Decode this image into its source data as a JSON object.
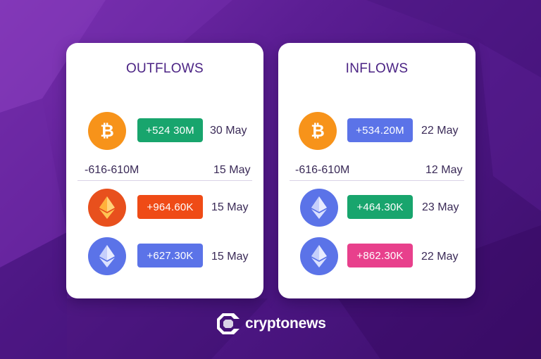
{
  "outflows": {
    "title": "OUTFLOWS",
    "rows": [
      {
        "icon": "bitcoin-icon",
        "amount": "+524 30M",
        "date": "30 May"
      },
      {
        "amount": "-616-610M",
        "date": "15 May"
      },
      {
        "icon": "ethereum-icon",
        "amount": "+964.60K",
        "date": "15 May"
      },
      {
        "icon": "ethereum-icon",
        "amount": "+627.30K",
        "date": "15 May"
      }
    ]
  },
  "inflows": {
    "title": "INFLOWS",
    "rows": [
      {
        "icon": "bitcoin-icon",
        "amount": "+534.20M",
        "date": "22 May"
      },
      {
        "amount": "-616-610M",
        "date": "12 May"
      },
      {
        "icon": "ethereum-icon",
        "amount": "+464.30K",
        "date": "23 May"
      },
      {
        "icon": "ethereum-icon",
        "amount": "+862.30K",
        "date": "22 May"
      }
    ]
  },
  "brand": {
    "name": "cryptonews",
    "icon": "cryptonews-logo-icon"
  },
  "colors": {
    "bitcoin": "#f7931a",
    "ethereum_orange": "#e8501d",
    "ethereum_blue": "#5b73e8",
    "green": "#18a56d",
    "orange": "#ef4b16",
    "blue": "#5b73e8",
    "pink": "#e8408c"
  }
}
